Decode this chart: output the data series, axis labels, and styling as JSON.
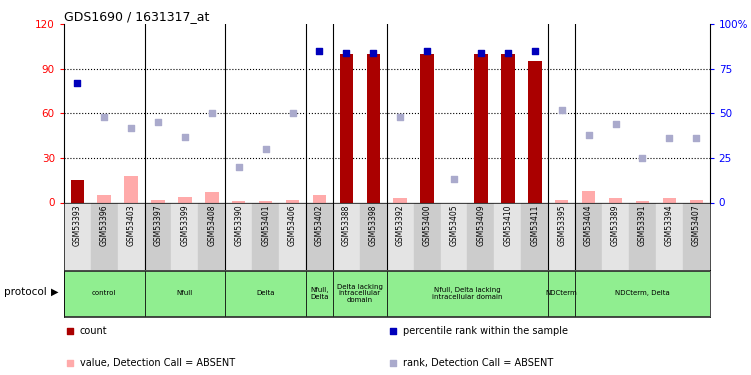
{
  "title": "GDS1690 / 1631317_at",
  "samples": [
    "GSM53393",
    "GSM53396",
    "GSM53403",
    "GSM53397",
    "GSM53399",
    "GSM53408",
    "GSM53390",
    "GSM53401",
    "GSM53406",
    "GSM53402",
    "GSM53388",
    "GSM53398",
    "GSM53392",
    "GSM53400",
    "GSM53405",
    "GSM53409",
    "GSM53410",
    "GSM53411",
    "GSM53395",
    "GSM53404",
    "GSM53389",
    "GSM53391",
    "GSM53394",
    "GSM53407"
  ],
  "count_present": [
    15,
    0,
    0,
    0,
    0,
    0,
    0,
    0,
    0,
    0,
    100,
    100,
    0,
    100,
    0,
    100,
    100,
    95,
    0,
    0,
    0,
    0,
    0,
    0
  ],
  "count_absent": [
    0,
    5,
    18,
    2,
    4,
    7,
    1,
    1,
    2,
    5,
    0,
    0,
    3,
    0,
    0,
    0,
    0,
    0,
    2,
    8,
    3,
    1,
    3,
    2
  ],
  "rank_present": [
    67,
    null,
    null,
    null,
    null,
    null,
    null,
    null,
    null,
    85,
    84,
    84,
    null,
    85,
    null,
    84,
    84,
    85,
    null,
    null,
    null,
    null,
    null,
    null
  ],
  "rank_absent": [
    null,
    48,
    42,
    45,
    37,
    50,
    20,
    30,
    50,
    null,
    null,
    null,
    48,
    null,
    13,
    null,
    null,
    null,
    52,
    38,
    44,
    25,
    36,
    36
  ],
  "protocols": [
    {
      "label": "control",
      "start": 0,
      "end": 3
    },
    {
      "label": "Nfull",
      "start": 3,
      "end": 6
    },
    {
      "label": "Delta",
      "start": 6,
      "end": 9
    },
    {
      "label": "Nfull,\nDelta",
      "start": 9,
      "end": 10
    },
    {
      "label": "Delta lacking\nintracellular\ndomain",
      "start": 10,
      "end": 12
    },
    {
      "label": "Nfull, Delta lacking\nintracellular domain",
      "start": 12,
      "end": 18
    },
    {
      "label": "NDCterm",
      "start": 18,
      "end": 19
    },
    {
      "label": "NDCterm, Delta",
      "start": 19,
      "end": 24
    }
  ],
  "group_borders": [
    3,
    6,
    9,
    10,
    12,
    18,
    19
  ],
  "ylim_left": [
    0,
    120
  ],
  "ylim_right": [
    0,
    100
  ],
  "yticks_left": [
    0,
    30,
    60,
    90,
    120
  ],
  "yticks_right": [
    0,
    25,
    50,
    75,
    100
  ],
  "hlines": [
    30,
    60,
    90
  ],
  "bar_color_present": "#aa0000",
  "bar_color_absent": "#ffaaaa",
  "rank_present_color": "#0000bb",
  "rank_absent_color": "#aaaacc",
  "proto_color": "#90ee90",
  "bar_width": 0.5,
  "dot_size": 18,
  "legend_items": [
    {
      "color": "#aa0000",
      "label": "count"
    },
    {
      "color": "#0000bb",
      "label": "percentile rank within the sample"
    },
    {
      "color": "#ffaaaa",
      "label": "value, Detection Call = ABSENT"
    },
    {
      "color": "#aaaacc",
      "label": "rank, Detection Call = ABSENT"
    }
  ]
}
